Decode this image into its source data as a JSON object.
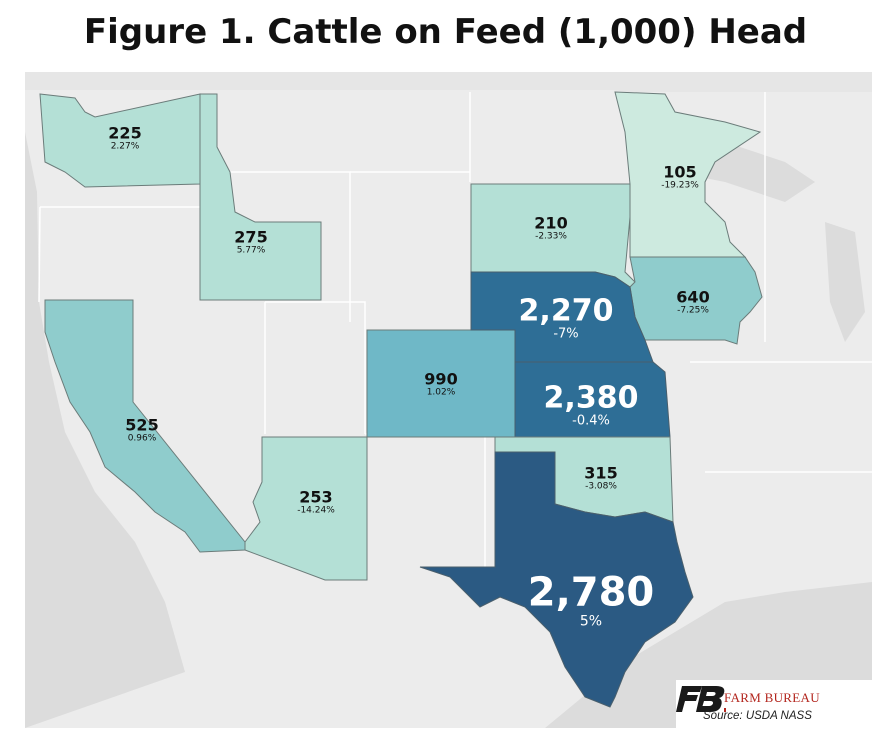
{
  "title": "Figure 1. Cattle on Feed (1,000) Head",
  "colors": {
    "light": "#b4e0d6",
    "pale": "#cdeadf",
    "mid": "#8fcccc",
    "teal": "#6fb8c7",
    "dark": "#2e6e96",
    "darkest": "#2b5a83",
    "background_land": "#e9e9e9"
  },
  "states": {
    "WA": {
      "value": "225",
      "pct": "2.27%"
    },
    "ID": {
      "value": "275",
      "pct": "5.77%"
    },
    "CA": {
      "value": "525",
      "pct": "0.96%"
    },
    "AZ": {
      "value": "253",
      "pct": "-14.24%"
    },
    "CO": {
      "value": "990",
      "pct": "1.02%"
    },
    "SD": {
      "value": "210",
      "pct": "-2.33%"
    },
    "MN": {
      "value": "105",
      "pct": "-19.23%"
    },
    "IA": {
      "value": "640",
      "pct": "-7.25%"
    },
    "NE": {
      "value": "2,270",
      "pct": "-7%"
    },
    "KS": {
      "value": "2,380",
      "pct": "-0.4%"
    },
    "OK": {
      "value": "315",
      "pct": "-3.08%"
    },
    "TX": {
      "value": "2,780",
      "pct": "5%"
    }
  },
  "logo": {
    "name": "FARM BUREAU",
    "mark": "FB"
  },
  "source": "Source:  USDA NASS"
}
